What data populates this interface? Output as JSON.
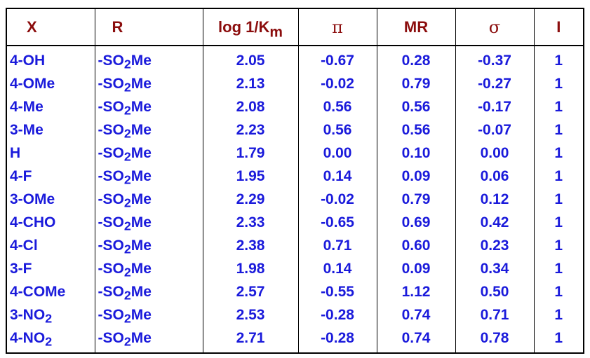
{
  "table": {
    "headers": {
      "x": "X",
      "r": "R",
      "log_prefix": "log 1/K",
      "log_sub": "m",
      "pi": "π",
      "mr": "MR",
      "sigma": "σ",
      "i": "I"
    },
    "rows": [
      {
        "x": "4-OH",
        "x_sub": "",
        "r_pre": "-SO",
        "r_sub": "2",
        "r_post": "Me",
        "log": "2.05",
        "pi": "-0.67",
        "mr": "0.28",
        "sigma": "-0.37",
        "i": "1"
      },
      {
        "x": "4-OMe",
        "x_sub": "",
        "r_pre": "-SO",
        "r_sub": "2",
        "r_post": "Me",
        "log": "2.13",
        "pi": "-0.02",
        "mr": "0.79",
        "sigma": "-0.27",
        "i": "1"
      },
      {
        "x": "4-Me",
        "x_sub": "",
        "r_pre": "-SO",
        "r_sub": "2",
        "r_post": "Me",
        "log": "2.08",
        "pi": "0.56",
        "mr": "0.56",
        "sigma": "-0.17",
        "i": "1"
      },
      {
        "x": "3-Me",
        "x_sub": "",
        "r_pre": "-SO",
        "r_sub": "2",
        "r_post": "Me",
        "log": "2.23",
        "pi": "0.56",
        "mr": "0.56",
        "sigma": "-0.07",
        "i": "1"
      },
      {
        "x": "H",
        "x_sub": "",
        "r_pre": "-SO",
        "r_sub": "2",
        "r_post": "Me",
        "log": "1.79",
        "pi": "0.00",
        "mr": "0.10",
        "sigma": "0.00",
        "i": "1"
      },
      {
        "x": "4-F",
        "x_sub": "",
        "r_pre": "-SO",
        "r_sub": "2",
        "r_post": "Me",
        "log": "1.95",
        "pi": "0.14",
        "mr": "0.09",
        "sigma": "0.06",
        "i": "1"
      },
      {
        "x": "3-OMe",
        "x_sub": "",
        "r_pre": "-SO",
        "r_sub": "2",
        "r_post": "Me",
        "log": "2.29",
        "pi": "-0.02",
        "mr": "0.79",
        "sigma": "0.12",
        "i": "1"
      },
      {
        "x": "4-CHO",
        "x_sub": "",
        "r_pre": "-SO",
        "r_sub": "2",
        "r_post": "Me",
        "log": "2.33",
        "pi": "-0.65",
        "mr": "0.69",
        "sigma": "0.42",
        "i": "1"
      },
      {
        "x": "4-Cl",
        "x_sub": "",
        "r_pre": "-SO",
        "r_sub": "2",
        "r_post": "Me",
        "log": "2.38",
        "pi": "0.71",
        "mr": "0.60",
        "sigma": "0.23",
        "i": "1"
      },
      {
        "x": "3-F",
        "x_sub": "",
        "r_pre": "-SO",
        "r_sub": "2",
        "r_post": "Me",
        "log": "1.98",
        "pi": "0.14",
        "mr": "0.09",
        "sigma": "0.34",
        "i": "1"
      },
      {
        "x": "4-COMe",
        "x_sub": "",
        "r_pre": "-SO",
        "r_sub": "2",
        "r_post": "Me",
        "log": "2.57",
        "pi": "-0.55",
        "mr": "1.12",
        "sigma": "0.50",
        "i": "1"
      },
      {
        "x": "3-NO",
        "x_sub": "2",
        "r_pre": "-SO",
        "r_sub": "2",
        "r_post": "Me",
        "log": "2.53",
        "pi": "-0.28",
        "mr": "0.74",
        "sigma": "0.71",
        "i": "1"
      },
      {
        "x": "4-NO",
        "x_sub": "2",
        "r_pre": "-SO",
        "r_sub": "2",
        "r_post": "Me",
        "log": "2.71",
        "pi": "-0.28",
        "mr": "0.74",
        "sigma": "0.78",
        "i": "1"
      }
    ]
  },
  "colors": {
    "header_text": "#8b0d0d",
    "body_text": "#1a1adb",
    "border": "#000000",
    "background": "#ffffff"
  }
}
